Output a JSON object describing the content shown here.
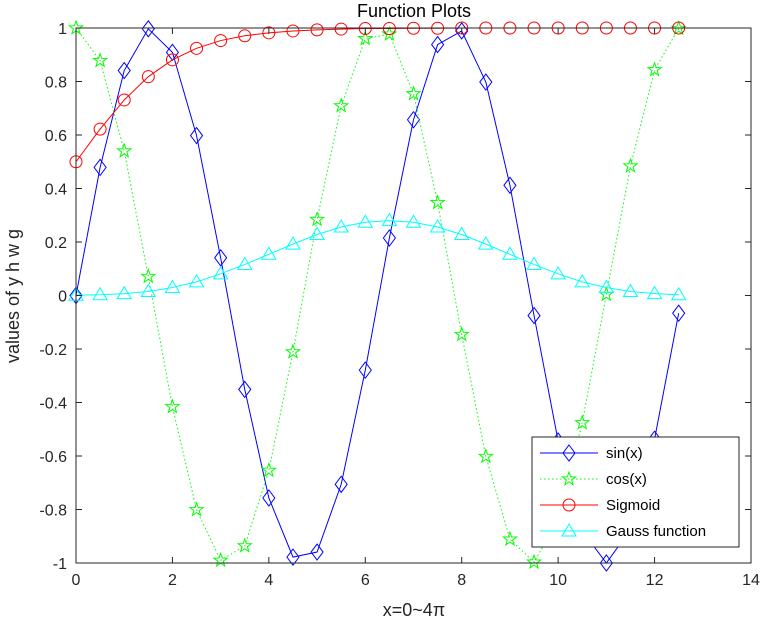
{
  "chart_data": {
    "type": "line",
    "title": "Function Plots",
    "xlabel": "x=0~4π",
    "ylabel": "values of y h w g",
    "xlim": [
      0,
      14
    ],
    "ylim": [
      -1,
      1
    ],
    "xticks": [
      0,
      2,
      4,
      6,
      8,
      10,
      12,
      14
    ],
    "yticks": [
      -1,
      -0.8,
      -0.6,
      -0.4,
      -0.2,
      0,
      0.2,
      0.4,
      0.6,
      0.8,
      1
    ],
    "xtick_labels": [
      "0",
      "2",
      "4",
      "6",
      "8",
      "10",
      "12",
      "14"
    ],
    "ytick_labels": [
      "-1",
      "-0.8",
      "-0.6",
      "-0.4",
      "-0.2",
      "0",
      "0.2",
      "0.4",
      "0.6",
      "0.8",
      "1"
    ],
    "grid": false,
    "legend_position": "bottom-right",
    "x": [
      0,
      0.5,
      1,
      1.5,
      2,
      2.5,
      3,
      3.5,
      4,
      4.5,
      5,
      5.5,
      6,
      6.5,
      7,
      7.5,
      8,
      8.5,
      9,
      9.5,
      10,
      10.5,
      11,
      11.5,
      12,
      12.5
    ],
    "series": [
      {
        "name": "sin(x)",
        "color": "#0000ff",
        "line": "solid",
        "marker": "diamond",
        "values": [
          0,
          0.479,
          0.841,
          0.997,
          0.909,
          0.598,
          0.141,
          -0.351,
          -0.757,
          -0.978,
          -0.959,
          -0.706,
          -0.279,
          0.215,
          0.657,
          0.938,
          0.989,
          0.798,
          0.412,
          -0.075,
          -0.544,
          -0.88,
          -1.0,
          -0.875,
          -0.537,
          -0.066
        ]
      },
      {
        "name": "cos(x)",
        "color": "#00ff00",
        "line": "dotted",
        "marker": "pentagram",
        "values": [
          1,
          0.878,
          0.54,
          0.071,
          -0.416,
          -0.801,
          -0.99,
          -0.936,
          -0.654,
          -0.211,
          0.284,
          0.709,
          0.96,
          0.977,
          0.754,
          0.347,
          -0.146,
          -0.602,
          -0.911,
          -0.997,
          -0.839,
          -0.476,
          0.004,
          0.484,
          0.844,
          0.998
        ]
      },
      {
        "name": "Sigmoid",
        "color": "#ff0000",
        "line": "solid",
        "marker": "circle",
        "values": [
          0.5,
          0.622,
          0.731,
          0.818,
          0.881,
          0.924,
          0.953,
          0.971,
          0.982,
          0.989,
          0.993,
          0.996,
          0.998,
          0.998,
          0.999,
          0.999,
          1.0,
          1.0,
          1.0,
          1.0,
          1.0,
          1.0,
          1.0,
          1.0,
          1.0,
          1.0
        ]
      },
      {
        "name": "Gauss function",
        "color": "#00ffff",
        "line": "solid",
        "marker": "triangle",
        "values": [
          0.001,
          0.003,
          0.007,
          0.015,
          0.03,
          0.051,
          0.081,
          0.116,
          0.154,
          0.192,
          0.228,
          0.256,
          0.274,
          0.28,
          0.274,
          0.256,
          0.228,
          0.192,
          0.154,
          0.116,
          0.081,
          0.051,
          0.03,
          0.015,
          0.007,
          0.003
        ]
      }
    ]
  }
}
